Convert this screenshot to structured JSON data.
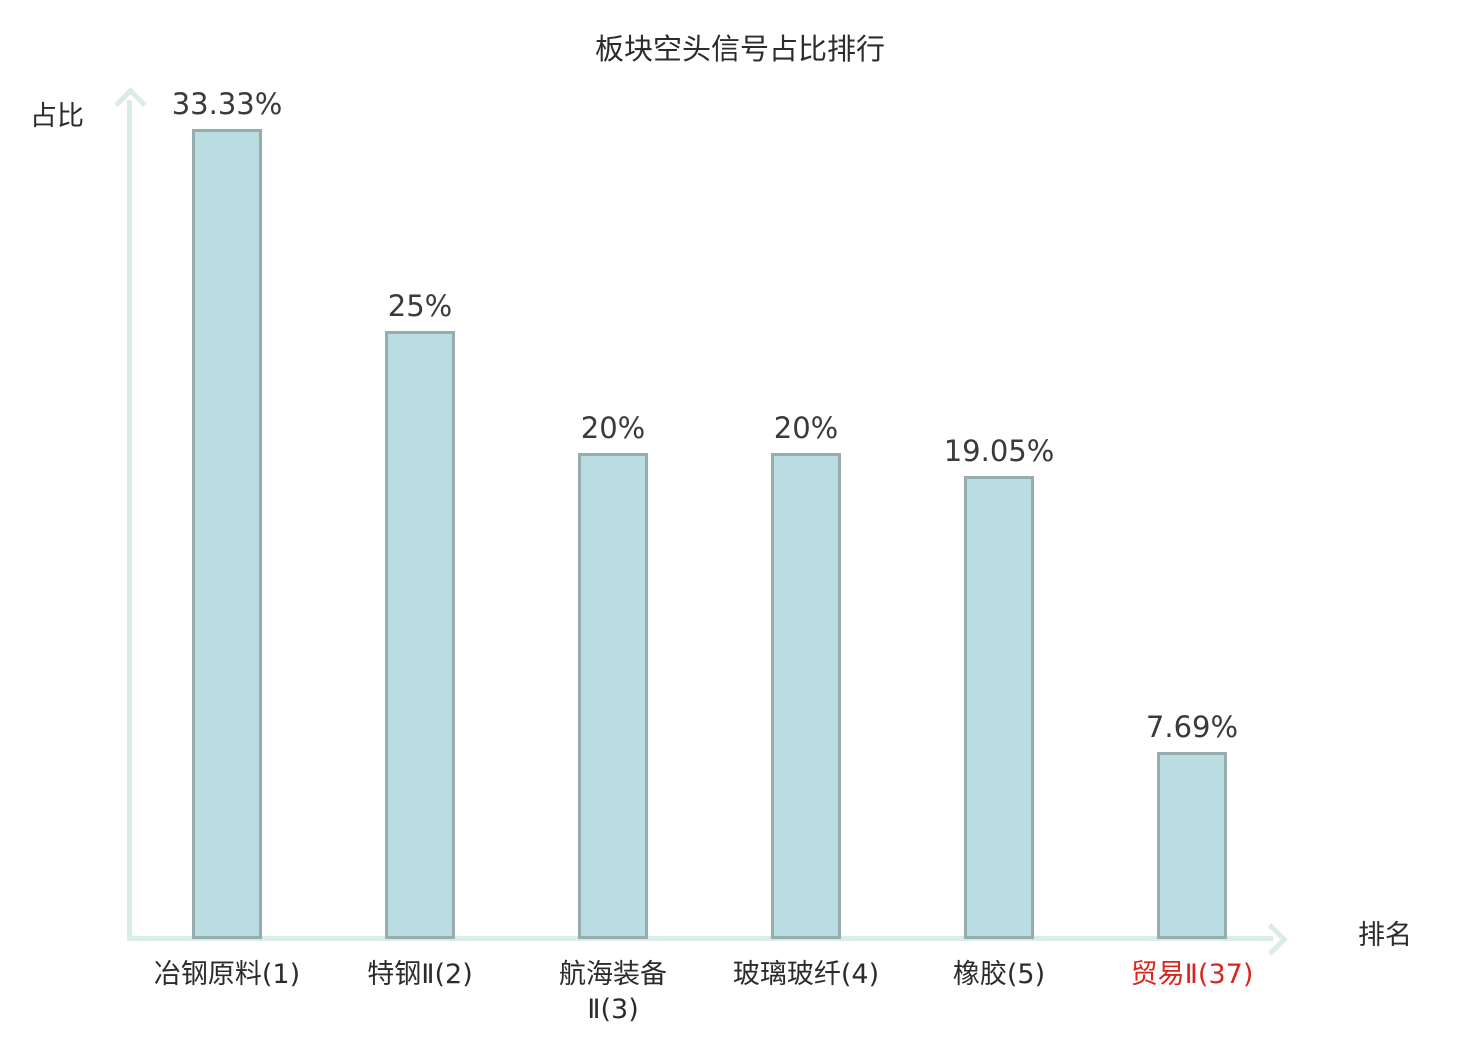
{
  "chart_data": {
    "type": "bar",
    "title": "板块空头信号占比排行",
    "ylabel": "占比",
    "xlabel": "排名",
    "categories": [
      "冶钢原料(1)",
      "特钢Ⅱ(2)",
      "航海装备\nⅡ(3)",
      "玻璃玻纤(4)",
      "橡胶(5)",
      "贸易Ⅱ(37)"
    ],
    "values": [
      33.33,
      25,
      20,
      20,
      19.05,
      7.69
    ],
    "value_labels": [
      "33.33%",
      "25%",
      "20%",
      "20%",
      "19.05%",
      "7.69%"
    ],
    "highlight_index": 5,
    "ylim": [
      0,
      35
    ],
    "grid": false,
    "legend": "none",
    "colors": {
      "bar_fill": "#b9dde0",
      "bar_border": "#97acae",
      "axis": "#d9ece8",
      "text": "#3a3a3a",
      "category_text": "#2c2c2c",
      "highlight_text": "#d9251d"
    }
  }
}
